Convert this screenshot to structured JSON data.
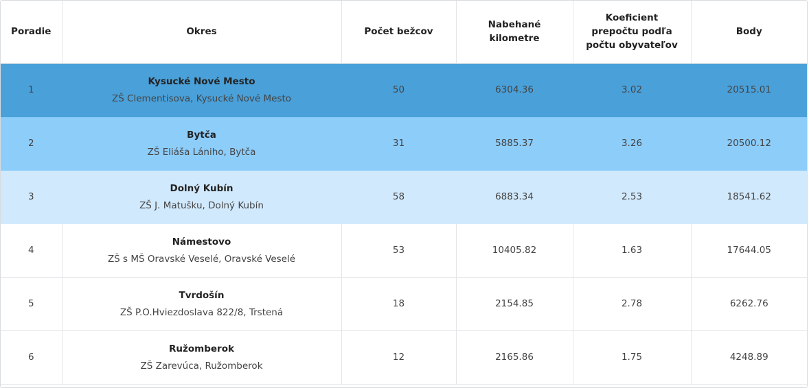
{
  "table": {
    "headers": {
      "rank": "Poradie",
      "district": "Okres",
      "runners": "Počet bežcov",
      "km": "Nabehané kilometre",
      "coef": "Koeficient prepočtu podľa počtu obyvateľov",
      "points": "Body"
    },
    "row_colors": {
      "first": "#4aa0d9",
      "second": "#8dcdfa",
      "third": "#d1e9fc",
      "default": "#ffffff"
    },
    "rows": [
      {
        "rank": "1",
        "district": "Kysucké Nové Mesto",
        "school": "ZŠ Clementisova, Kysucké Nové Mesto",
        "runners": "50",
        "km": "6304.36",
        "coef": "3.02",
        "points": "20515.01"
      },
      {
        "rank": "2",
        "district": "Bytča",
        "school": "ZŠ Eliáša Lániho, Bytča",
        "runners": "31",
        "km": "5885.37",
        "coef": "3.26",
        "points": "20500.12"
      },
      {
        "rank": "3",
        "district": "Dolný Kubín",
        "school": "ZŠ J. Matušku, Dolný Kubín",
        "runners": "58",
        "km": "6883.34",
        "coef": "2.53",
        "points": "18541.62"
      },
      {
        "rank": "4",
        "district": "Námestovo",
        "school": "ZŠ s MŠ Oravské Veselé, Oravské Veselé",
        "runners": "53",
        "km": "10405.82",
        "coef": "1.63",
        "points": "17644.05"
      },
      {
        "rank": "5",
        "district": "Tvrdošín",
        "school": "ZŠ P.O.Hviezdoslava 822/8, Trstená",
        "runners": "18",
        "km": "2154.85",
        "coef": "2.78",
        "points": "6262.76"
      },
      {
        "rank": "6",
        "district": "Ružomberok",
        "school": "ZŠ Zarevúca, Ružomberok",
        "runners": "12",
        "km": "2165.86",
        "coef": "1.75",
        "points": "4248.89"
      }
    ]
  }
}
